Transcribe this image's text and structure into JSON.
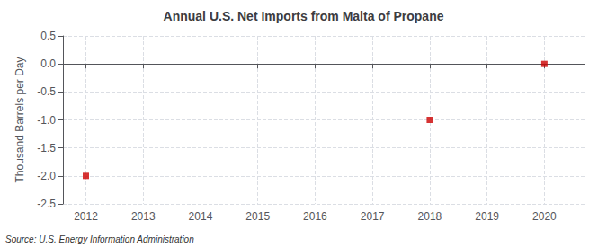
{
  "chart_data": {
    "type": "scatter",
    "title": "Annual U.S. Net Imports from Malta of Propane",
    "ylabel": "Thousand Barrels per Day",
    "annotations": [
      "Source: U.S. Energy Information Administration"
    ],
    "x": [
      2012,
      2018,
      2020
    ],
    "values": [
      -2.0,
      -1.0,
      0.0
    ],
    "color": "#cc0000",
    "marker": "square",
    "xlim": [
      2011.6,
      2020.7
    ],
    "ylim": [
      -2.5,
      0.5
    ],
    "xticks": [
      2012,
      2013,
      2014,
      2015,
      2016,
      2017,
      2018,
      2019,
      2020
    ],
    "yticks": [
      0.5,
      {
        "value": 0.0,
        "label": "0.0"
      },
      -0.5,
      {
        "value": -1.0,
        "label": "-1.0"
      },
      -1.5,
      {
        "value": -2.0,
        "label": "-2.0"
      },
      -2.5
    ],
    "grid": true
  }
}
